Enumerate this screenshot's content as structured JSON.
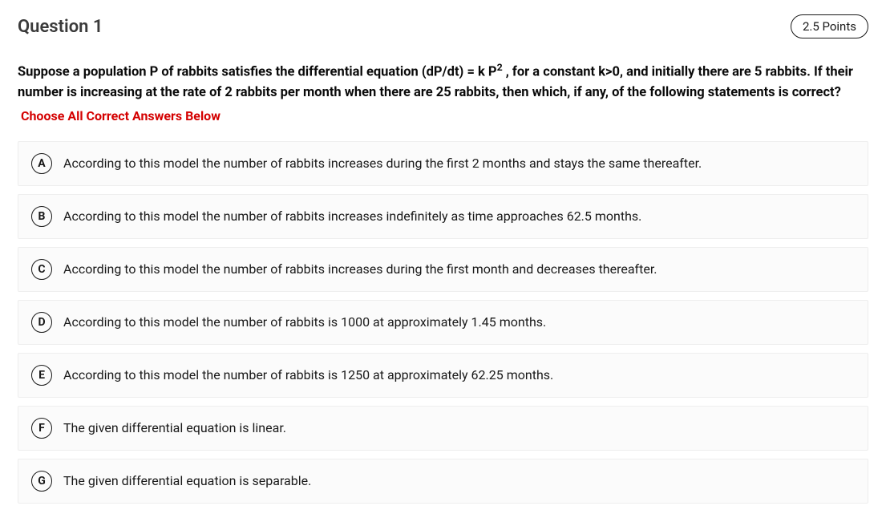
{
  "header": {
    "title": "Question 1",
    "points": "2.5 Points"
  },
  "stem": {
    "html": "Suppose a population P of rabbits satisfies the differential equation (dP/dt) = k P<sup>2</sup> , for a constant k>0, and initially there are 5 rabbits. If their number is increasing at the rate of 2 rabbits per month when there are 25 rabbits, then which, if any, of the following statements is correct?"
  },
  "instruction": "Choose All Correct Answers Below",
  "options": [
    {
      "letter": "A",
      "text": "According to this model the number of rabbits increases during the first 2 months and stays the same thereafter."
    },
    {
      "letter": "B",
      "text": "According to this model the number of rabbits increases indefinitely as time approaches 62.5 months."
    },
    {
      "letter": "C",
      "text": "According to this model the number of rabbits increases during the first month and decreases thereafter."
    },
    {
      "letter": "D",
      "text": "According to this model the number of rabbits is 1000 at approximately 1.45 months."
    },
    {
      "letter": "E",
      "text": "According to this model the number of rabbits is 1250 at approximately 62.25 months."
    },
    {
      "letter": "F",
      "text": "The given differential equation is linear."
    },
    {
      "letter": "G",
      "text": "The given differential equation is separable."
    }
  ],
  "style": {
    "accent_error": "#d40000",
    "option_bg": "#fbfbfb",
    "option_border": "#eeeeee",
    "text_color": "#191919"
  }
}
